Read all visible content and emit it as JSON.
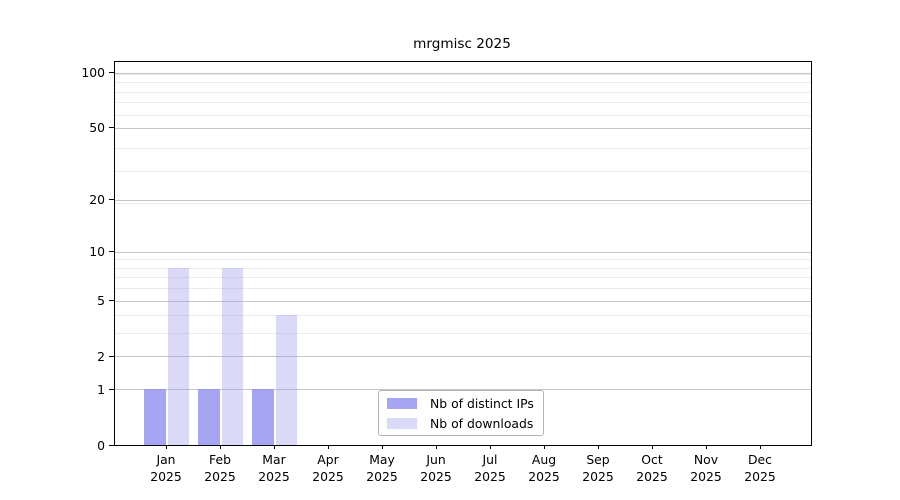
{
  "chart_data": {
    "type": "bar",
    "title": "mrgmisc 2025",
    "x_tick_months": [
      "Jan",
      "Feb",
      "Mar",
      "Apr",
      "May",
      "Jun",
      "Jul",
      "Aug",
      "Sep",
      "Oct",
      "Nov",
      "Dec"
    ],
    "x_tick_year": "2025",
    "series": [
      {
        "name": "Nb of distinct IPs",
        "color": "#a5a5f3",
        "values": [
          1,
          1,
          1,
          0,
          0,
          0,
          0,
          0,
          0,
          0,
          0,
          0
        ]
      },
      {
        "name": "Nb of downloads",
        "color": "#dadaf8",
        "values": [
          8,
          8,
          4,
          0,
          0,
          0,
          0,
          0,
          0,
          0,
          0,
          0
        ]
      }
    ],
    "yscale": "log1p",
    "y_ticks": [
      0,
      1,
      2,
      5,
      10,
      20,
      50,
      100
    ],
    "y_minor_gridline_values": [
      3,
      4,
      6,
      7,
      8,
      9,
      19,
      29,
      39,
      59,
      69,
      79,
      89,
      99
    ],
    "ylim": [
      0,
      114.6
    ],
    "grid": "horizontal major+minor",
    "legend_position": "bottom-center"
  },
  "colors": {
    "background": "#ffffff",
    "spine": "#000000",
    "major_grid": "#c6c6c6",
    "minor_grid": "#ebebeb",
    "legend_border": "#b3b3b3",
    "text": "#000000"
  }
}
